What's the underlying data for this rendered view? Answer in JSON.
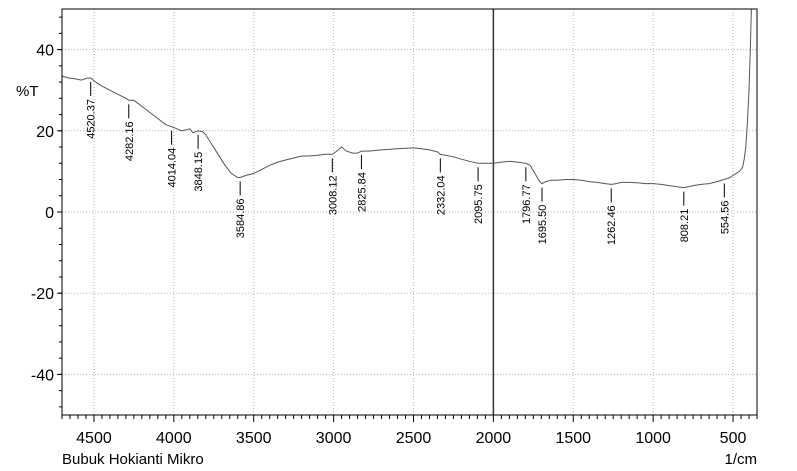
{
  "chart_data": {
    "type": "line",
    "title": "",
    "ylabel": "%T",
    "xlabel": "1/cm",
    "caption": "Bubuk Hokianti Mikro",
    "xlim": [
      4700,
      350
    ],
    "ylim": [
      -50,
      50
    ],
    "x_ticks": [
      4500,
      4000,
      3500,
      3000,
      2500,
      2000,
      1500,
      1000,
      500
    ],
    "y_ticks": [
      40,
      20,
      0,
      -20,
      -40
    ],
    "grid": true,
    "marker_line_x": 2000,
    "colors": {
      "trace": "#555555",
      "frame": "#000000",
      "grid": "#b4b4b4"
    },
    "series": [
      {
        "values": [
          [
            4700,
            33.5
          ],
          [
            4660,
            33.0
          ],
          [
            4620,
            32.8
          ],
          [
            4580,
            32.5
          ],
          [
            4540,
            33.0
          ],
          [
            4520,
            33.0
          ],
          [
            4490,
            32.0
          ],
          [
            4450,
            31.0
          ],
          [
            4400,
            30.0
          ],
          [
            4350,
            29.0
          ],
          [
            4300,
            28.0
          ],
          [
            4282,
            27.5
          ],
          [
            4250,
            27.5
          ],
          [
            4200,
            26.0
          ],
          [
            4150,
            24.5
          ],
          [
            4100,
            23.0
          ],
          [
            4050,
            21.5
          ],
          [
            4014,
            21.0
          ],
          [
            3980,
            20.5
          ],
          [
            3950,
            20.0
          ],
          [
            3900,
            20.5
          ],
          [
            3880,
            19.5
          ],
          [
            3848,
            20.0
          ],
          [
            3820,
            19.8
          ],
          [
            3800,
            19.0
          ],
          [
            3760,
            16.5
          ],
          [
            3720,
            14.0
          ],
          [
            3680,
            11.5
          ],
          [
            3640,
            9.5
          ],
          [
            3600,
            8.5
          ],
          [
            3585,
            8.5
          ],
          [
            3550,
            9.0
          ],
          [
            3500,
            9.5
          ],
          [
            3450,
            10.5
          ],
          [
            3400,
            11.5
          ],
          [
            3350,
            12.3
          ],
          [
            3300,
            12.8
          ],
          [
            3250,
            13.3
          ],
          [
            3200,
            13.8
          ],
          [
            3150,
            13.8
          ],
          [
            3100,
            14.0
          ],
          [
            3050,
            14.2
          ],
          [
            3008,
            14.2
          ],
          [
            2980,
            15.0
          ],
          [
            2950,
            16.0
          ],
          [
            2920,
            15.0
          ],
          [
            2880,
            14.5
          ],
          [
            2850,
            14.5
          ],
          [
            2826,
            15.0
          ],
          [
            2780,
            15.0
          ],
          [
            2700,
            15.3
          ],
          [
            2600,
            15.6
          ],
          [
            2500,
            15.8
          ],
          [
            2450,
            15.6
          ],
          [
            2400,
            15.3
          ],
          [
            2350,
            14.8
          ],
          [
            2332,
            14.2
          ],
          [
            2300,
            14.0
          ],
          [
            2250,
            13.6
          ],
          [
            2200,
            13.0
          ],
          [
            2150,
            12.5
          ],
          [
            2096,
            12.0
          ],
          [
            2050,
            12.0
          ],
          [
            2000,
            12.0
          ],
          [
            1950,
            12.3
          ],
          [
            1900,
            12.5
          ],
          [
            1850,
            12.3
          ],
          [
            1800,
            12.0
          ],
          [
            1797,
            12.0
          ],
          [
            1770,
            11.5
          ],
          [
            1740,
            9.5
          ],
          [
            1710,
            7.5
          ],
          [
            1696,
            7.0
          ],
          [
            1670,
            7.5
          ],
          [
            1640,
            7.8
          ],
          [
            1600,
            7.8
          ],
          [
            1550,
            8.0
          ],
          [
            1500,
            8.0
          ],
          [
            1450,
            7.8
          ],
          [
            1400,
            7.5
          ],
          [
            1350,
            7.3
          ],
          [
            1300,
            7.0
          ],
          [
            1262,
            6.8
          ],
          [
            1230,
            7.0
          ],
          [
            1200,
            7.3
          ],
          [
            1150,
            7.3
          ],
          [
            1100,
            7.2
          ],
          [
            1050,
            7.0
          ],
          [
            1000,
            7.0
          ],
          [
            950,
            6.8
          ],
          [
            900,
            6.5
          ],
          [
            850,
            6.2
          ],
          [
            808,
            6.0
          ],
          [
            780,
            6.2
          ],
          [
            750,
            6.5
          ],
          [
            700,
            6.8
          ],
          [
            650,
            7.0
          ],
          [
            600,
            7.5
          ],
          [
            555,
            8.0
          ],
          [
            520,
            8.5
          ],
          [
            500,
            9.0
          ],
          [
            480,
            9.5
          ],
          [
            460,
            10.0
          ],
          [
            440,
            11.0
          ],
          [
            430,
            13.0
          ],
          [
            420,
            16.0
          ],
          [
            410,
            22.0
          ],
          [
            400,
            30.0
          ],
          [
            392,
            40.0
          ],
          [
            385,
            50.0
          ]
        ]
      }
    ],
    "peak_labels": [
      {
        "x": 4520.37,
        "y": 33.0,
        "text": "4520.37"
      },
      {
        "x": 4282.16,
        "y": 27.5,
        "text": "4282.16"
      },
      {
        "x": 4014.04,
        "y": 21.0,
        "text": "4014.04"
      },
      {
        "x": 3848.15,
        "y": 20.0,
        "text": "3848.15"
      },
      {
        "x": 3584.86,
        "y": 8.5,
        "text": "3584.86"
      },
      {
        "x": 3008.12,
        "y": 14.2,
        "text": "3008.12"
      },
      {
        "x": 2825.84,
        "y": 15.0,
        "text": "2825.84"
      },
      {
        "x": 2332.04,
        "y": 14.2,
        "text": "2332.04"
      },
      {
        "x": 2095.75,
        "y": 12.0,
        "text": "2095.75"
      },
      {
        "x": 1796.77,
        "y": 12.0,
        "text": "1796.77"
      },
      {
        "x": 1695.5,
        "y": 7.0,
        "text": "1695.50"
      },
      {
        "x": 1262.46,
        "y": 6.8,
        "text": "1262.46"
      },
      {
        "x": 808.21,
        "y": 6.0,
        "text": "808.21"
      },
      {
        "x": 554.56,
        "y": 8.0,
        "text": "554.56"
      }
    ]
  }
}
